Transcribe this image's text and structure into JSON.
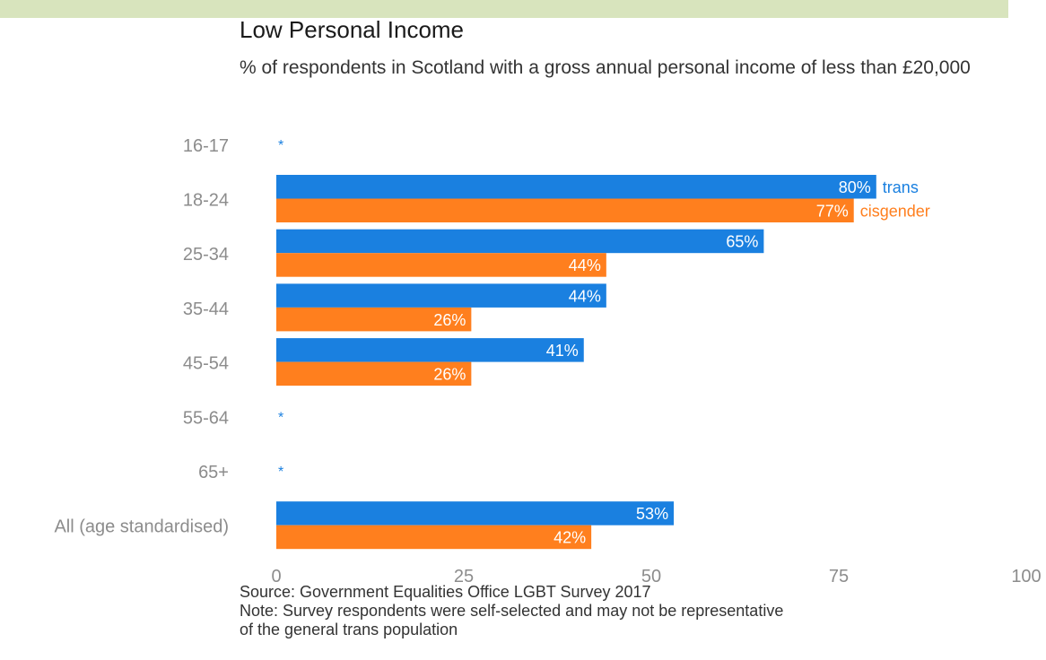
{
  "colors": {
    "trans": "#1a80e0",
    "cisgender": "#ff7f1e",
    "header_band": "#d8e4bd",
    "axis_text": "#8c8c8c"
  },
  "chart_data": {
    "type": "bar",
    "orientation": "horizontal",
    "title": "Low Personal Income",
    "subtitle": "% of respondents in Scotland with a gross annual personal income of less than £20,000",
    "categories": [
      "16-17",
      "18-24",
      "25-34",
      "35-44",
      "45-54",
      "55-64",
      "65+",
      "All (age standardised)"
    ],
    "series": [
      {
        "name": "trans",
        "values": [
          null,
          80,
          65,
          44,
          41,
          null,
          null,
          53
        ],
        "labels": [
          "*",
          "80%",
          "65%",
          "44%",
          "41%",
          "*",
          "*",
          "53%"
        ]
      },
      {
        "name": "cisgender",
        "values": [
          null,
          77,
          44,
          26,
          26,
          null,
          null,
          42
        ],
        "labels": [
          "",
          "77%",
          "44%",
          "26%",
          "26%",
          "",
          "",
          "42%"
        ]
      }
    ],
    "xlim": [
      0,
      100
    ],
    "xticks": [
      0,
      25,
      50,
      75,
      100
    ],
    "grid": false,
    "legend": "inline labels beside 18-24 bars",
    "source": "Source: Government Equalities Office LGBT Survey 2017",
    "note_lines": [
      "Note: Survey respondents were self-selected and may not be representative",
      "of the general trans population"
    ]
  }
}
